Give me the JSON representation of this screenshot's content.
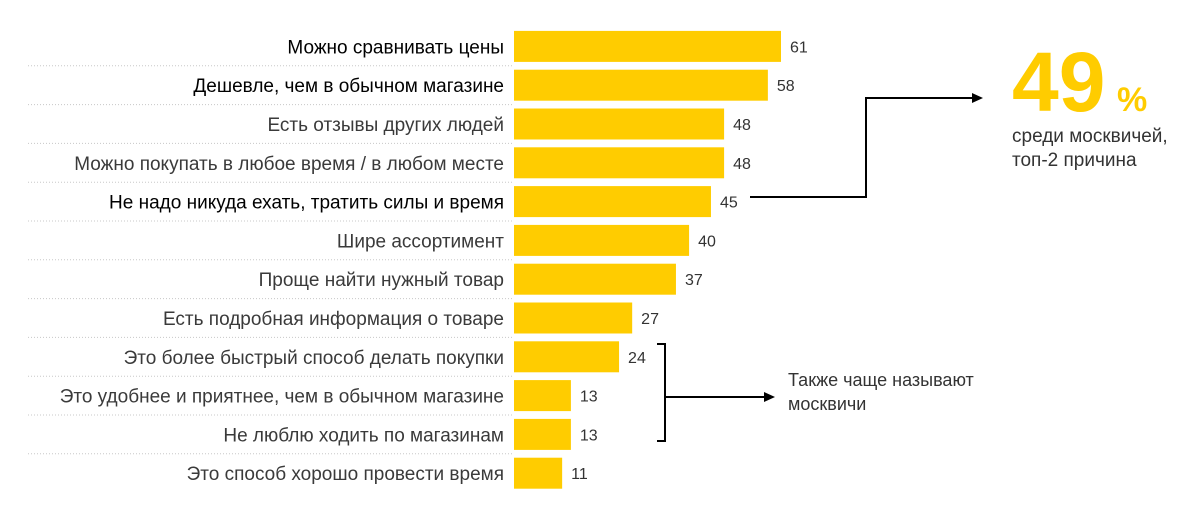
{
  "chart_data": {
    "type": "bar",
    "orientation": "horizontal",
    "categories": [
      "Можно сравнивать цены",
      "Дешевле, чем в обычном магазине",
      "Есть отзывы других людей",
      "Можно покупать в любое время / в любом месте",
      "Не надо никуда ехать, тратить силы и время",
      "Шире ассортимент",
      "Проще найти нужный товар",
      "Есть подробная информация о товаре",
      "Это более быстрый способ делать покупки",
      "Это удобнее и приятнее, чем в обычном магазине",
      "Не люблю ходить по магазинам",
      "Это способ хорошо провести время"
    ],
    "values": [
      61,
      58,
      48,
      48,
      45,
      40,
      37,
      27,
      24,
      13,
      13,
      11
    ],
    "highlighted": [
      true,
      true,
      false,
      false,
      true,
      false,
      false,
      false,
      false,
      false,
      false,
      false
    ],
    "xlim": [
      0,
      61
    ],
    "grid": false,
    "legend": "none"
  },
  "colors": {
    "bar": "#ffcc00",
    "accent": "#ffcc00",
    "text": "#333333",
    "separator": "#c8c8c8"
  },
  "callout": {
    "percent_number": "49",
    "percent_sign": "%",
    "line1": "среди москвичей,",
    "line2": "топ-2 причина"
  },
  "bracket_note": {
    "line1": "Также чаще называют",
    "line2": "москвичи"
  }
}
